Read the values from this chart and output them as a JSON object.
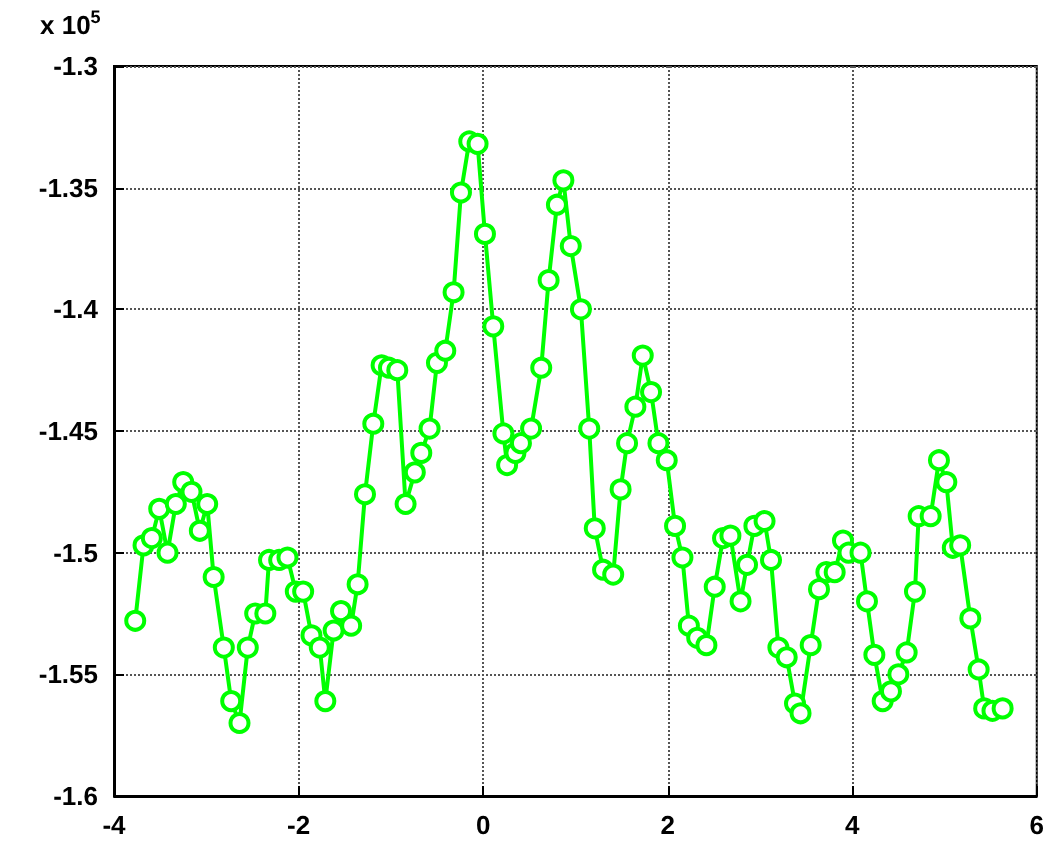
{
  "chart_data": {
    "type": "line",
    "annotations": [
      "x 10$^{5}$"
    ],
    "x": [
      -3.77,
      -3.68,
      -3.59,
      -3.51,
      -3.42,
      -3.33,
      -3.25,
      -3.16,
      -3.07,
      -2.99,
      -2.92,
      -2.81,
      -2.73,
      -2.64,
      -2.55,
      -2.47,
      -2.36,
      -2.32,
      -2.21,
      -2.12,
      -2.03,
      -1.95,
      -1.86,
      -1.77,
      -1.71,
      -1.62,
      -1.54,
      -1.43,
      -1.36,
      -1.28,
      -1.19,
      -1.1,
      -1.02,
      -0.93,
      -0.84,
      -0.74,
      -0.67,
      -0.58,
      -0.5,
      -0.41,
      -0.32,
      -0.24,
      -0.15,
      -0.06,
      0.02,
      0.11,
      0.22,
      0.26,
      0.35,
      0.41,
      0.52,
      0.63,
      0.71,
      0.8,
      0.87,
      0.95,
      1.06,
      1.15,
      1.21,
      1.3,
      1.41,
      1.49,
      1.56,
      1.65,
      1.73,
      1.82,
      1.9,
      1.99,
      2.08,
      2.16,
      2.23,
      2.32,
      2.42,
      2.51,
      2.6,
      2.68,
      2.79,
      2.86,
      2.94,
      3.05,
      3.12,
      3.2,
      3.29,
      3.38,
      3.44,
      3.55,
      3.64,
      3.72,
      3.81,
      3.9,
      3.96,
      4.09,
      4.16,
      4.24,
      4.33,
      4.42,
      4.5,
      4.59,
      4.68,
      4.72,
      4.85,
      4.94,
      5.02,
      5.09,
      5.17,
      5.28,
      5.37,
      5.43,
      5.52,
      5.63
    ],
    "series": [
      {
        "color": "#00ff00",
        "values": [
          -1.528,
          -1.497,
          -1.494,
          -1.482,
          -1.5,
          -1.48,
          -1.471,
          -1.475,
          -1.491,
          -1.48,
          -1.51,
          -1.539,
          -1.561,
          -1.57,
          -1.539,
          -1.525,
          -1.525,
          -1.503,
          -1.503,
          -1.502,
          -1.516,
          -1.516,
          -1.534,
          -1.539,
          -1.561,
          -1.532,
          -1.524,
          -1.53,
          -1.513,
          -1.476,
          -1.447,
          -1.423,
          -1.424,
          -1.425,
          -1.48,
          -1.467,
          -1.459,
          -1.449,
          -1.422,
          -1.417,
          -1.393,
          -1.352,
          -1.331,
          -1.332,
          -1.369,
          -1.407,
          -1.451,
          -1.464,
          -1.459,
          -1.455,
          -1.449,
          -1.424,
          -1.388,
          -1.357,
          -1.347,
          -1.374,
          -1.4,
          -1.449,
          -1.49,
          -1.507,
          -1.509,
          -1.474,
          -1.455,
          -1.44,
          -1.419,
          -1.434,
          -1.455,
          -1.462,
          -1.489,
          -1.502,
          -1.53,
          -1.535,
          -1.538,
          -1.514,
          -1.494,
          -1.493,
          -1.52,
          -1.505,
          -1.489,
          -1.487,
          -1.503,
          -1.539,
          -1.543,
          -1.562,
          -1.566,
          -1.538,
          -1.515,
          -1.508,
          -1.508,
          -1.495,
          -1.5,
          -1.5,
          -1.52,
          -1.542,
          -1.561,
          -1.557,
          -1.55,
          -1.541,
          -1.516,
          -1.485,
          -1.485,
          -1.462,
          -1.471,
          -1.498,
          -1.497,
          -1.527,
          -1.548,
          -1.564,
          -1.565,
          -1.564
        ]
      }
    ],
    "xlim": [
      -4,
      6
    ],
    "xticks": [
      -4,
      -2,
      0,
      2,
      4,
      6
    ],
    "ylim": [
      -1.6,
      -1.3
    ],
    "yticks": [
      -1.6,
      -1.55,
      -1.5,
      -1.45,
      -1.4,
      -1.35,
      -1.3
    ],
    "grid": true,
    "marker": "circle",
    "line_style": "solid"
  }
}
